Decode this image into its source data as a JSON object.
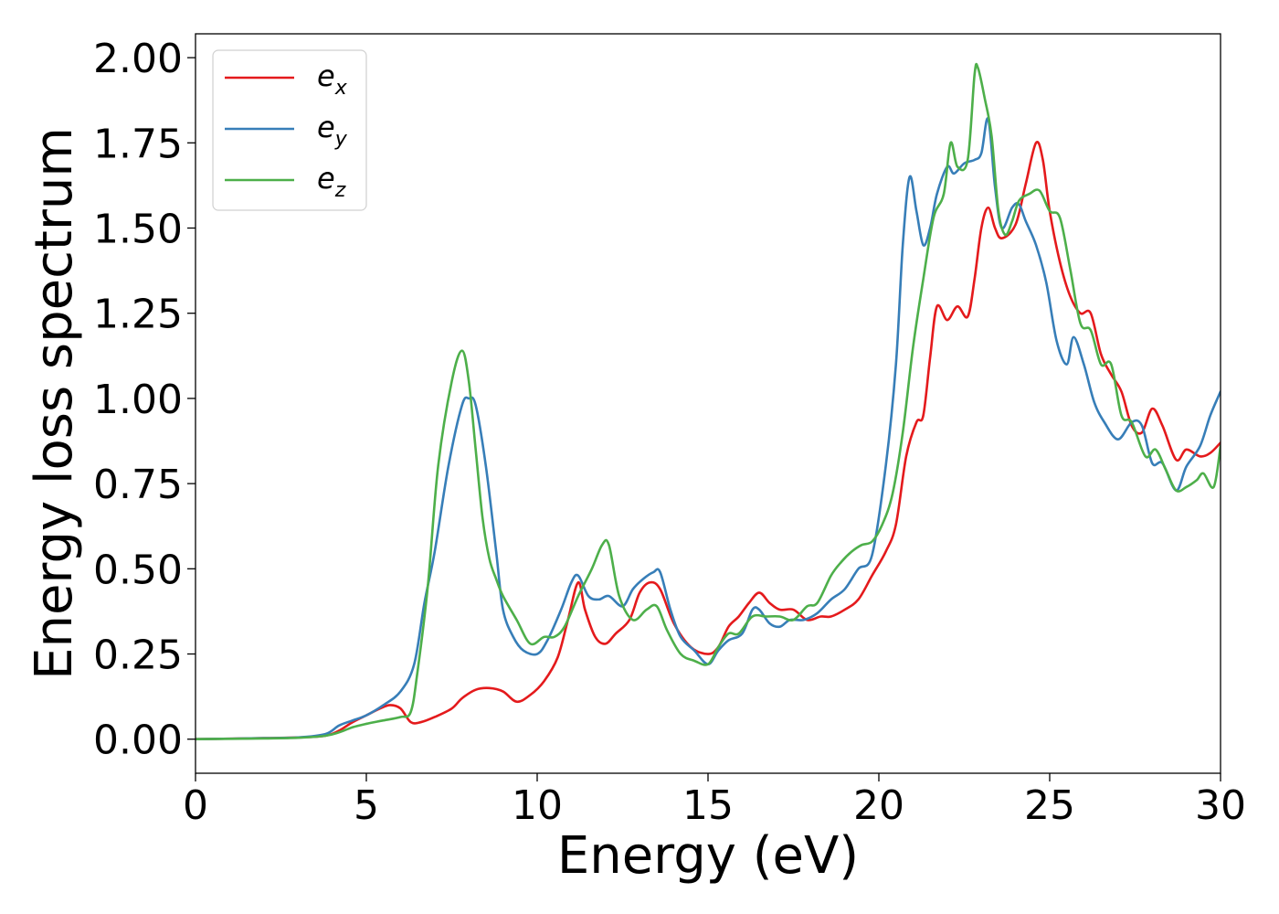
{
  "chart_data": {
    "type": "line",
    "title": "",
    "xlabel": "Energy (eV)",
    "ylabel": "Energy loss spectrum",
    "xlim": [
      0,
      30
    ],
    "ylim": [
      -0.1,
      2.07
    ],
    "xticks": [
      0,
      5,
      10,
      15,
      20,
      25,
      30
    ],
    "xtick_labels": [
      "0",
      "5",
      "10",
      "15",
      "20",
      "25",
      "30"
    ],
    "yticks": [
      0,
      0.25,
      0.5,
      0.75,
      1.0,
      1.25,
      1.5,
      1.75,
      2.0
    ],
    "ytick_labels": [
      "0.00",
      "0.25",
      "0.50",
      "0.75",
      "1.00",
      "1.25",
      "1.50",
      "1.75",
      "2.00"
    ],
    "grid": false,
    "legend_position": "top-left",
    "series": [
      {
        "name": "e",
        "subscript": "x",
        "color": "#e41a1c",
        "x": [
          0,
          2,
          3,
          3.8,
          4.2,
          4.6,
          5.0,
          5.4,
          5.7,
          6.0,
          6.3,
          6.6,
          7.0,
          7.5,
          7.8,
          8.2,
          8.6,
          9.0,
          9.4,
          9.8,
          10.2,
          10.6,
          10.9,
          11.2,
          11.4,
          11.7,
          12.0,
          12.3,
          12.7,
          13.0,
          13.3,
          13.6,
          14.0,
          14.5,
          15.0,
          15.3,
          15.6,
          15.9,
          16.2,
          16.5,
          16.8,
          17.1,
          17.5,
          17.9,
          18.3,
          18.6,
          19.0,
          19.4,
          19.8,
          20.2,
          20.5,
          20.8,
          21.1,
          21.3,
          21.5,
          21.7,
          22.0,
          22.3,
          22.6,
          22.8,
          23.0,
          23.2,
          23.4,
          23.6,
          24.0,
          24.3,
          24.6,
          24.8,
          25.0,
          25.3,
          25.6,
          25.9,
          26.2,
          26.5,
          26.8,
          27.1,
          27.4,
          27.7,
          28.0,
          28.3,
          28.7,
          29.0,
          29.4,
          29.7,
          30.0
        ],
        "y": [
          0.0,
          0.003,
          0.005,
          0.01,
          0.025,
          0.05,
          0.07,
          0.09,
          0.1,
          0.09,
          0.05,
          0.05,
          0.065,
          0.09,
          0.12,
          0.145,
          0.15,
          0.14,
          0.11,
          0.13,
          0.17,
          0.24,
          0.35,
          0.46,
          0.38,
          0.3,
          0.28,
          0.31,
          0.35,
          0.43,
          0.46,
          0.44,
          0.34,
          0.27,
          0.25,
          0.27,
          0.33,
          0.36,
          0.4,
          0.43,
          0.4,
          0.38,
          0.38,
          0.35,
          0.36,
          0.36,
          0.38,
          0.41,
          0.48,
          0.55,
          0.63,
          0.83,
          0.93,
          0.95,
          1.12,
          1.27,
          1.23,
          1.27,
          1.24,
          1.35,
          1.5,
          1.56,
          1.5,
          1.47,
          1.51,
          1.63,
          1.75,
          1.7,
          1.55,
          1.4,
          1.3,
          1.25,
          1.25,
          1.13,
          1.07,
          1.02,
          0.92,
          0.9,
          0.97,
          0.92,
          0.82,
          0.85,
          0.83,
          0.84,
          0.87
        ]
      },
      {
        "name": "e",
        "subscript": "y",
        "color": "#377eb8",
        "x": [
          0,
          2,
          3,
          3.8,
          4.2,
          4.6,
          5.0,
          5.5,
          6.0,
          6.4,
          6.7,
          7.0,
          7.4,
          7.8,
          8.0,
          8.2,
          8.5,
          8.8,
          9.0,
          9.3,
          9.6,
          10.0,
          10.3,
          10.7,
          11.0,
          11.2,
          11.5,
          11.8,
          12.1,
          12.5,
          12.8,
          13.1,
          13.4,
          13.6,
          13.9,
          14.2,
          14.6,
          15.0,
          15.3,
          15.6,
          16.0,
          16.3,
          16.5,
          16.8,
          17.1,
          17.4,
          17.8,
          18.2,
          18.6,
          19.0,
          19.4,
          19.8,
          20.2,
          20.5,
          20.7,
          20.9,
          21.1,
          21.3,
          21.5,
          21.7,
          22.0,
          22.2,
          22.5,
          22.8,
          23.0,
          23.2,
          23.4,
          23.6,
          23.9,
          24.1,
          24.3,
          24.6,
          24.9,
          25.2,
          25.5,
          25.7,
          26.0,
          26.3,
          26.6,
          27.0,
          27.4,
          27.7,
          28.0,
          28.3,
          28.7,
          29.0,
          29.4,
          29.7,
          30.0
        ],
        "y": [
          0.0,
          0.003,
          0.005,
          0.015,
          0.04,
          0.055,
          0.07,
          0.1,
          0.14,
          0.22,
          0.4,
          0.55,
          0.8,
          0.98,
          1.0,
          0.98,
          0.8,
          0.55,
          0.38,
          0.3,
          0.26,
          0.25,
          0.29,
          0.38,
          0.46,
          0.48,
          0.42,
          0.41,
          0.42,
          0.39,
          0.44,
          0.47,
          0.49,
          0.49,
          0.38,
          0.3,
          0.26,
          0.22,
          0.26,
          0.29,
          0.31,
          0.38,
          0.38,
          0.34,
          0.33,
          0.35,
          0.35,
          0.37,
          0.41,
          0.44,
          0.5,
          0.54,
          0.8,
          1.1,
          1.45,
          1.65,
          1.55,
          1.45,
          1.5,
          1.6,
          1.68,
          1.66,
          1.69,
          1.7,
          1.72,
          1.82,
          1.62,
          1.5,
          1.56,
          1.57,
          1.52,
          1.45,
          1.34,
          1.17,
          1.1,
          1.18,
          1.1,
          0.99,
          0.93,
          0.88,
          0.93,
          0.92,
          0.81,
          0.81,
          0.73,
          0.8,
          0.86,
          0.95,
          1.02
        ]
      },
      {
        "name": "e",
        "subscript": "z",
        "color": "#4daf4a",
        "x": [
          0,
          2,
          3,
          3.8,
          4.2,
          4.6,
          5.0,
          5.5,
          6.0,
          6.3,
          6.5,
          6.8,
          7.1,
          7.5,
          7.8,
          8.0,
          8.2,
          8.4,
          8.6,
          8.8,
          9.0,
          9.4,
          9.8,
          10.2,
          10.5,
          10.8,
          11.2,
          11.6,
          11.9,
          12.1,
          12.4,
          12.8,
          13.2,
          13.5,
          13.8,
          14.2,
          14.6,
          15.0,
          15.3,
          15.6,
          15.9,
          16.3,
          16.7,
          17.1,
          17.5,
          17.9,
          18.2,
          18.6,
          18.9,
          19.2,
          19.5,
          19.8,
          20.1,
          20.4,
          20.7,
          21.0,
          21.3,
          21.6,
          21.9,
          22.1,
          22.3,
          22.6,
          22.8,
          22.9,
          23.1,
          23.3,
          23.5,
          23.7,
          23.9,
          24.1,
          24.4,
          24.7,
          25.0,
          25.3,
          25.6,
          25.9,
          26.2,
          26.5,
          26.8,
          27.1,
          27.4,
          27.8,
          28.1,
          28.4,
          28.7,
          29.0,
          29.3,
          29.5,
          29.8,
          30.0
        ],
        "y": [
          0.0,
          0.002,
          0.004,
          0.01,
          0.02,
          0.035,
          0.045,
          0.055,
          0.065,
          0.08,
          0.2,
          0.45,
          0.8,
          1.05,
          1.14,
          1.05,
          0.85,
          0.65,
          0.53,
          0.47,
          0.42,
          0.35,
          0.28,
          0.3,
          0.3,
          0.33,
          0.42,
          0.5,
          0.57,
          0.57,
          0.42,
          0.35,
          0.38,
          0.39,
          0.32,
          0.25,
          0.23,
          0.22,
          0.27,
          0.31,
          0.31,
          0.36,
          0.36,
          0.36,
          0.35,
          0.39,
          0.4,
          0.48,
          0.52,
          0.55,
          0.57,
          0.58,
          0.63,
          0.72,
          0.9,
          1.15,
          1.35,
          1.53,
          1.6,
          1.75,
          1.68,
          1.7,
          1.95,
          1.97,
          1.88,
          1.77,
          1.55,
          1.48,
          1.52,
          1.58,
          1.6,
          1.61,
          1.55,
          1.53,
          1.38,
          1.22,
          1.2,
          1.1,
          1.1,
          0.95,
          0.93,
          0.83,
          0.85,
          0.79,
          0.73,
          0.74,
          0.76,
          0.78,
          0.74,
          0.86
        ]
      }
    ]
  }
}
